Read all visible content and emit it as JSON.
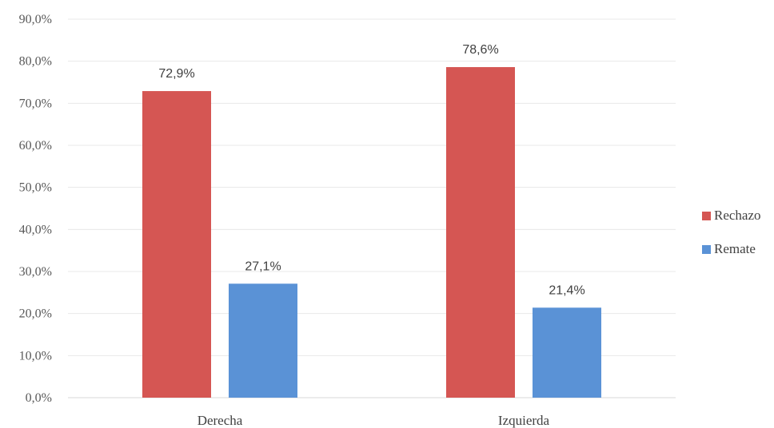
{
  "chart_data": {
    "type": "bar",
    "title": "",
    "xlabel": "",
    "ylabel": "",
    "categories": [
      "Derecha",
      "Izquierda"
    ],
    "series": [
      {
        "name": "Rechazo",
        "values": [
          72.9,
          78.6
        ],
        "labels": [
          "72,9%",
          "78,6%"
        ],
        "color": "#d55653"
      },
      {
        "name": "Remate",
        "values": [
          27.1,
          21.4
        ],
        "labels": [
          "27,1%",
          "21,4%"
        ],
        "color": "#5a92d6"
      }
    ],
    "ylim": [
      0,
      90
    ],
    "yticks": [
      {
        "value": 0,
        "label": "0,0%"
      },
      {
        "value": 10,
        "label": "10,0%"
      },
      {
        "value": 20,
        "label": "20,0%"
      },
      {
        "value": 30,
        "label": "30,0%"
      },
      {
        "value": 40,
        "label": "40,0%"
      },
      {
        "value": 50,
        "label": "50,0%"
      },
      {
        "value": 60,
        "label": "60,0%"
      },
      {
        "value": 70,
        "label": "70,0%"
      },
      {
        "value": 80,
        "label": "80,0%"
      },
      {
        "value": 90,
        "label": "90,0%"
      }
    ],
    "grid": true,
    "legend": {
      "position": "right"
    }
  }
}
